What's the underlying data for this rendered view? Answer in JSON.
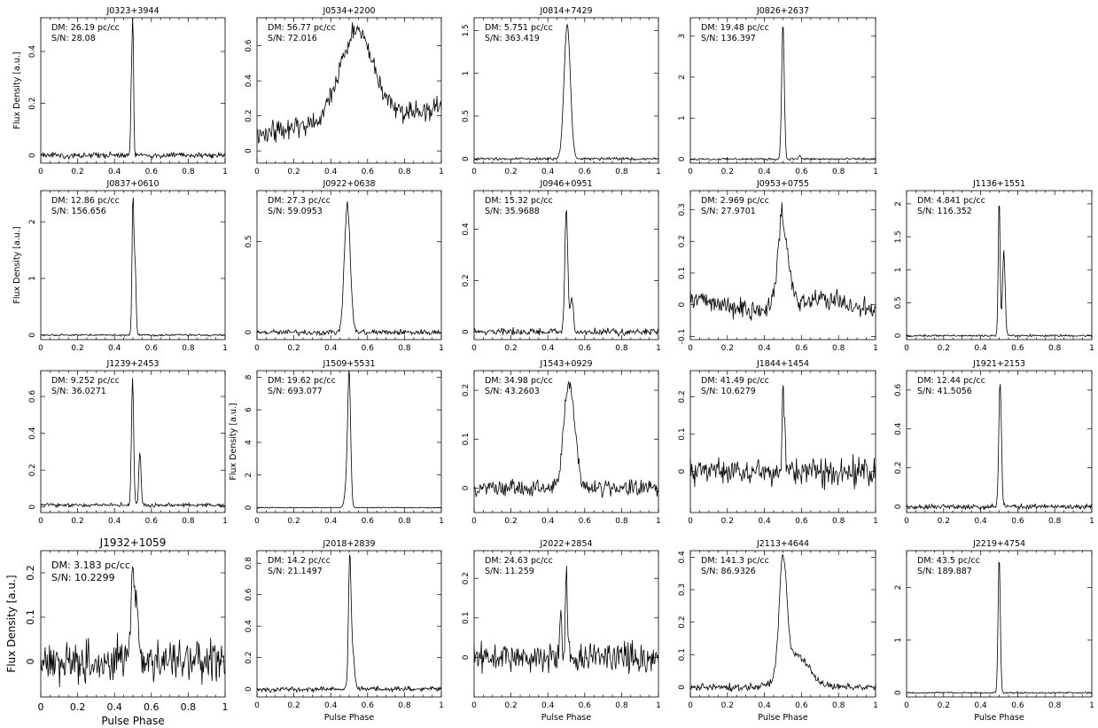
{
  "figure": {
    "xlabel": "Pulse Phase",
    "ylabel": "Flux Density [a.u.]"
  },
  "chart_data": [
    {
      "type": "line",
      "title": "J0323+3944",
      "annotation_dm": "DM: 26.19 pc/cc",
      "annotation_sn": "S/N: 28.08",
      "xlim": [
        0,
        1
      ],
      "ylim": [
        -0.03,
        0.53
      ],
      "yticks": [
        0,
        0.2,
        0.4
      ],
      "ytick_labels": [
        "0",
        "0.2",
        "0.4"
      ],
      "xticks": [
        0,
        0.2,
        0.4,
        0.6,
        0.8,
        1
      ],
      "xtick_labels": [
        "0",
        "0.2",
        "0.4",
        "0.6",
        "0.8",
        "1"
      ],
      "ylabel": "Flux Density [a.u.]",
      "xlabel": "",
      "noise": 0.008,
      "baseline": 0,
      "slope": 0,
      "wave": 0,
      "components": [
        {
          "c": 0.492,
          "w": 0.004,
          "a": 0.27
        },
        {
          "c": 0.5,
          "w": 0.004,
          "a": 0.5
        }
      ],
      "seed": 1
    },
    {
      "type": "line",
      "title": "J0534+2200",
      "annotation_dm": "DM: 56.77 pc/cc",
      "annotation_sn": "S/N: 72.016",
      "xlim": [
        0,
        1
      ],
      "ylim": [
        -0.07,
        0.76
      ],
      "yticks": [
        0,
        0.2,
        0.4,
        0.6
      ],
      "ytick_labels": [
        "0",
        "0.2",
        "0.4",
        "0.6"
      ],
      "xticks": [
        0,
        0.2,
        0.4,
        0.6,
        0.8,
        1
      ],
      "xtick_labels": [
        "0",
        "0.2",
        "0.4",
        "0.6",
        "0.8",
        "1"
      ],
      "ylabel": "",
      "xlabel": "",
      "noise": 0.045,
      "baseline": 0.1,
      "slope": 0.15,
      "wave": 0,
      "components": [
        {
          "c": 0.54,
          "w": 0.09,
          "a": 0.5
        }
      ],
      "seed": 2
    },
    {
      "type": "line",
      "title": "J0814+7429",
      "annotation_dm": "DM: 5.751 pc/cc",
      "annotation_sn": "S/N: 363.419",
      "xlim": [
        0,
        1
      ],
      "ylim": [
        -0.05,
        1.65
      ],
      "yticks": [
        0,
        0.5,
        1,
        1.5
      ],
      "ytick_labels": [
        "0",
        "0.5",
        "1",
        "1.5"
      ],
      "xticks": [
        0,
        0.2,
        0.4,
        0.6,
        0.8,
        1
      ],
      "xtick_labels": [
        "0",
        "0.2",
        "0.4",
        "0.6",
        "0.8",
        "1"
      ],
      "ylabel": "",
      "xlabel": "",
      "noise": 0.012,
      "baseline": 0,
      "slope": 0,
      "wave": 0,
      "components": [
        {
          "c": 0.505,
          "w": 0.017,
          "a": 1.57
        }
      ],
      "seed": 3
    },
    {
      "type": "line",
      "title": "J0826+2637",
      "annotation_dm": "DM: 19.48 pc/cc",
      "annotation_sn": "S/N: 136.397",
      "xlim": [
        0,
        1
      ],
      "ylim": [
        -0.1,
        3.45
      ],
      "yticks": [
        0,
        1,
        2,
        3
      ],
      "ytick_labels": [
        "0",
        "1",
        "2",
        "3"
      ],
      "xticks": [
        0,
        0.2,
        0.4,
        0.6,
        0.8,
        1
      ],
      "xtick_labels": [
        "0",
        "0.2",
        "0.4",
        "0.6",
        "0.8",
        "1"
      ],
      "ylabel": "",
      "xlabel": "",
      "noise": 0.02,
      "baseline": 0,
      "slope": 0,
      "wave": 0,
      "components": [
        {
          "c": 0.5,
          "w": 0.007,
          "a": 3.35
        },
        {
          "c": 0.59,
          "w": 0.005,
          "a": 0.1
        }
      ],
      "seed": 4
    },
    {
      "type": "line",
      "title": "J0837+0610",
      "annotation_dm": "DM: 12.86 pc/cc",
      "annotation_sn": "S/N: 156.656",
      "xlim": [
        0,
        1
      ],
      "ylim": [
        -0.08,
        2.55
      ],
      "yticks": [
        0,
        1,
        2
      ],
      "ytick_labels": [
        "0",
        "1",
        "2"
      ],
      "xticks": [
        0,
        0.2,
        0.4,
        0.6,
        0.8,
        1
      ],
      "xtick_labels": [
        "0",
        "0.2",
        "0.4",
        "0.6",
        "0.8",
        "1"
      ],
      "ylabel": "Flux Density [a.u.]",
      "xlabel": "",
      "noise": 0.012,
      "baseline": 0,
      "slope": 0,
      "wave": 0,
      "components": [
        {
          "c": 0.5,
          "w": 0.005,
          "a": 2.45
        },
        {
          "c": 0.512,
          "w": 0.005,
          "a": 1.2
        }
      ],
      "seed": 5
    },
    {
      "type": "line",
      "title": "J0922+0638",
      "annotation_dm": "DM: 27.3 pc/cc",
      "annotation_sn": "S/N: 59.0953",
      "xlim": [
        0,
        1
      ],
      "ylim": [
        -0.04,
        0.78
      ],
      "yticks": [
        0,
        0.5
      ],
      "ytick_labels": [
        "0",
        "0.5"
      ],
      "xticks": [
        0,
        0.2,
        0.4,
        0.6,
        0.8,
        1
      ],
      "xtick_labels": [
        "0",
        "0.2",
        "0.4",
        "0.6",
        "0.8",
        "1"
      ],
      "ylabel": "",
      "xlabel": "",
      "noise": 0.012,
      "baseline": 0,
      "slope": 0,
      "wave": 0,
      "components": [
        {
          "c": 0.49,
          "w": 0.016,
          "a": 0.7
        }
      ],
      "seed": 6
    },
    {
      "type": "line",
      "title": "J0946+0951",
      "annotation_dm": "DM: 15.32 pc/cc",
      "annotation_sn": "S/N: 35.9688",
      "xlim": [
        0,
        1
      ],
      "ylim": [
        -0.03,
        0.55
      ],
      "yticks": [
        0,
        0.2,
        0.4
      ],
      "ytick_labels": [
        "0",
        "0.2",
        "0.4"
      ],
      "xticks": [
        0,
        0.2,
        0.4,
        0.6,
        0.8,
        1
      ],
      "xtick_labels": [
        "0",
        "0.2",
        "0.4",
        "0.6",
        "0.8",
        "1"
      ],
      "ylabel": "",
      "xlabel": "",
      "noise": 0.01,
      "baseline": 0,
      "slope": 0,
      "wave": 0,
      "components": [
        {
          "c": 0.5,
          "w": 0.008,
          "a": 0.48
        },
        {
          "c": 0.53,
          "w": 0.008,
          "a": 0.14
        }
      ],
      "seed": 7
    },
    {
      "type": "line",
      "title": "J0953+0755",
      "annotation_dm": "DM: 2.969 pc/cc",
      "annotation_sn": "S/N: 27.9701",
      "xlim": [
        0,
        1
      ],
      "ylim": [
        -0.11,
        0.36
      ],
      "yticks": [
        -0.1,
        0,
        0.1,
        0.2,
        0.3
      ],
      "ytick_labels": [
        "-0.1",
        "0",
        "0.1",
        "0.2",
        "0.3"
      ],
      "xticks": [
        0,
        0.2,
        0.4,
        0.6,
        0.8,
        1
      ],
      "xtick_labels": [
        "0",
        "0.2",
        "0.4",
        "0.6",
        "0.8",
        "1"
      ],
      "ylabel": "",
      "xlabel": "",
      "noise": 0.025,
      "baseline": 0,
      "slope": 0,
      "wave": 0.015,
      "components": [
        {
          "c": 0.5,
          "w": 0.03,
          "a": 0.24
        },
        {
          "c": 0.49,
          "w": 0.007,
          "a": 0.08
        }
      ],
      "seed": 8
    },
    {
      "type": "line",
      "title": "J1136+1551",
      "annotation_dm": "DM: 4.841 pc/cc",
      "annotation_sn": "S/N: 116.352",
      "xlim": [
        0,
        1
      ],
      "ylim": [
        -0.06,
        2.2
      ],
      "yticks": [
        0,
        0.5,
        1,
        1.5,
        2
      ],
      "ytick_labels": [
        "0",
        "0.5",
        "1",
        "1.5",
        "2"
      ],
      "xticks": [
        0,
        0.2,
        0.4,
        0.6,
        0.8,
        1
      ],
      "xtick_labels": [
        "0",
        "0.2",
        "0.4",
        "0.6",
        "0.8",
        "1"
      ],
      "ylabel": "",
      "xlabel": "",
      "noise": 0.012,
      "baseline": 0,
      "slope": 0,
      "wave": 0,
      "components": [
        {
          "c": 0.5,
          "w": 0.005,
          "a": 2.12
        },
        {
          "c": 0.525,
          "w": 0.007,
          "a": 1.28
        }
      ],
      "seed": 9
    },
    {
      "type": "line",
      "title": "J1239+2453",
      "annotation_dm": "DM: 9.252 pc/cc",
      "annotation_sn": "S/N: 36.0271",
      "xlim": [
        0,
        1
      ],
      "ylim": [
        -0.03,
        0.74
      ],
      "yticks": [
        0,
        0.2,
        0.4,
        0.6
      ],
      "ytick_labels": [
        "0",
        "0.2",
        "0.4",
        "0.6"
      ],
      "xticks": [
        0,
        0.2,
        0.4,
        0.6,
        0.8,
        1
      ],
      "xtick_labels": [
        "0",
        "0.2",
        "0.4",
        "0.6",
        "0.8",
        "1"
      ],
      "ylabel": "",
      "xlabel": "",
      "noise": 0.008,
      "baseline": 0.01,
      "slope": 0,
      "wave": 0,
      "components": [
        {
          "c": 0.498,
          "w": 0.006,
          "a": 0.7
        },
        {
          "c": 0.538,
          "w": 0.006,
          "a": 0.29
        }
      ],
      "seed": 10
    },
    {
      "type": "line",
      "title": "J1509+5531",
      "annotation_dm": "DM: 19.62 pc/cc",
      "annotation_sn": "S/N: 693.077",
      "xlim": [
        0,
        1
      ],
      "ylim": [
        -0.3,
        8.4
      ],
      "yticks": [
        0,
        2,
        4,
        6,
        8
      ],
      "ytick_labels": [
        "0",
        "2",
        "4",
        "6",
        "8"
      ],
      "xticks": [
        0,
        0.2,
        0.4,
        0.6,
        0.8,
        1
      ],
      "xtick_labels": [
        "0",
        "0.2",
        "0.4",
        "0.6",
        "0.8",
        "1"
      ],
      "ylabel": "Flux Density [a.u.]",
      "xlabel": "",
      "noise": 0.02,
      "baseline": 0,
      "slope": 0,
      "wave": 0,
      "components": [
        {
          "c": 0.5,
          "w": 0.008,
          "a": 8.1
        },
        {
          "c": 0.485,
          "w": 0.01,
          "a": 1.2
        }
      ],
      "seed": 11
    },
    {
      "type": "line",
      "title": "J1543+0929",
      "annotation_dm": "DM: 34.98 pc/cc",
      "annotation_sn": "S/N: 43.2603",
      "xlim": [
        0,
        1
      ],
      "ylim": [
        -0.05,
        0.24
      ],
      "yticks": [
        0,
        0.1,
        0.2
      ],
      "ytick_labels": [
        "0",
        "0.1",
        "0.2"
      ],
      "xticks": [
        0,
        0.2,
        0.4,
        0.6,
        0.8,
        1
      ],
      "xtick_labels": [
        "0",
        "0.2",
        "0.4",
        "0.6",
        "0.8",
        "1"
      ],
      "ylabel": "",
      "xlabel": "",
      "noise": 0.012,
      "baseline": 0,
      "slope": 0,
      "wave": 0,
      "components": [
        {
          "c": 0.51,
          "w": 0.025,
          "a": 0.2
        },
        {
          "c": 0.55,
          "w": 0.02,
          "a": 0.06
        }
      ],
      "seed": 12
    },
    {
      "type": "line",
      "title": "J1844+1454",
      "annotation_dm": "DM: 41.49 pc/cc",
      "annotation_sn": "S/N: 10.6279",
      "xlim": [
        0,
        1
      ],
      "ylim": [
        -0.11,
        0.27
      ],
      "yticks": [
        0,
        0.1,
        0.2
      ],
      "ytick_labels": [
        "0",
        "0.1",
        "0.2"
      ],
      "xticks": [
        0,
        0.2,
        0.4,
        0.6,
        0.8,
        1
      ],
      "xtick_labels": [
        "0",
        "0.2",
        "0.4",
        "0.6",
        "0.8",
        "1"
      ],
      "ylabel": "",
      "xlabel": "",
      "noise": 0.028,
      "baseline": 0,
      "slope": 0,
      "wave": 0,
      "components": [
        {
          "c": 0.5,
          "w": 0.005,
          "a": 0.24
        },
        {
          "c": 0.51,
          "w": 0.004,
          "a": 0.1
        }
      ],
      "seed": 13
    },
    {
      "type": "line",
      "title": "J1921+2153",
      "annotation_dm": "DM: 12.44 pc/cc",
      "annotation_sn": "S/N: 41.5056",
      "xlim": [
        0,
        1
      ],
      "ylim": [
        -0.03,
        0.7
      ],
      "yticks": [
        0,
        0.2,
        0.4,
        0.6
      ],
      "ytick_labels": [
        "0",
        "0.2",
        "0.4",
        "0.6"
      ],
      "xticks": [
        0,
        0.2,
        0.4,
        0.6,
        0.8,
        1
      ],
      "xtick_labels": [
        "0",
        "0.2",
        "0.4",
        "0.6",
        "0.8",
        "1"
      ],
      "ylabel": "",
      "xlabel": "",
      "noise": 0.01,
      "baseline": 0,
      "slope": 0,
      "wave": 0,
      "components": [
        {
          "c": 0.505,
          "w": 0.007,
          "a": 0.65
        }
      ],
      "seed": 14
    },
    {
      "type": "line",
      "title": "J1932+1059",
      "annotation_dm": "DM: 3.183 pc/cc",
      "annotation_sn": "S/N: 10.2299",
      "xlim": [
        0,
        1
      ],
      "ylim": [
        -0.08,
        0.25
      ],
      "yticks": [
        0,
        0.1,
        0.2
      ],
      "ytick_labels": [
        "0",
        "0.1",
        "0.2"
      ],
      "xticks": [
        0,
        0.2,
        0.4,
        0.6,
        0.8,
        1
      ],
      "xtick_labels": [
        "0",
        "0.2",
        "0.4",
        "0.6",
        "0.8",
        "1"
      ],
      "ylabel": "Flux Density [a.u.]",
      "xlabel": "Pulse Phase",
      "noise": 0.035,
      "baseline": 0,
      "slope": 0,
      "wave": 0,
      "components": [
        {
          "c": 0.505,
          "w": 0.02,
          "a": 0.14
        },
        {
          "c": 0.5,
          "w": 0.006,
          "a": 0.08
        }
      ],
      "seed": 15
    },
    {
      "type": "line",
      "title": "J2018+2839",
      "annotation_dm": "DM: 14.2 pc/cc",
      "annotation_sn": "S/N: 21.1497",
      "xlim": [
        0,
        1
      ],
      "ylim": [
        -0.05,
        0.88
      ],
      "yticks": [
        0,
        0.2,
        0.4,
        0.6,
        0.8
      ],
      "ytick_labels": [
        "0",
        "0.2",
        "0.4",
        "0.6",
        "0.8"
      ],
      "xticks": [
        0,
        0.2,
        0.4,
        0.6,
        0.8,
        1
      ],
      "xtick_labels": [
        "0",
        "0.2",
        "0.4",
        "0.6",
        "0.8",
        "1"
      ],
      "ylabel": "",
      "xlabel": "Pulse Phase",
      "noise": 0.012,
      "baseline": 0,
      "slope": 0,
      "wave": 0,
      "components": [
        {
          "c": 0.503,
          "w": 0.007,
          "a": 0.82
        },
        {
          "c": 0.52,
          "w": 0.01,
          "a": 0.22
        }
      ],
      "seed": 16
    },
    {
      "type": "line",
      "title": "J2022+2854",
      "annotation_dm": "DM: 24.63 pc/cc",
      "annotation_sn": "S/N: 11.259",
      "xlim": [
        0,
        1
      ],
      "ylim": [
        -0.1,
        0.27
      ],
      "yticks": [
        0,
        0.1,
        0.2
      ],
      "ytick_labels": [
        "0",
        "0.1",
        "0.2"
      ],
      "xticks": [
        0,
        0.2,
        0.4,
        0.6,
        0.8,
        1
      ],
      "xtick_labels": [
        "0",
        "0.2",
        "0.4",
        "0.6",
        "0.8",
        "1"
      ],
      "ylabel": "",
      "xlabel": "Pulse Phase",
      "noise": 0.028,
      "baseline": 0,
      "slope": 0,
      "wave": 0,
      "components": [
        {
          "c": 0.47,
          "w": 0.005,
          "a": 0.13
        },
        {
          "c": 0.5,
          "w": 0.005,
          "a": 0.25
        }
      ],
      "seed": 17
    },
    {
      "type": "line",
      "title": "J2113+4644",
      "annotation_dm": "DM: 141.3 pc/cc",
      "annotation_sn": "S/N: 86.9326",
      "xlim": [
        0,
        1
      ],
      "ylim": [
        -0.03,
        0.42
      ],
      "yticks": [
        0,
        0.1,
        0.2,
        0.3,
        0.4
      ],
      "ytick_labels": [
        "0",
        "0.1",
        "0.2",
        "0.3",
        "0.4"
      ],
      "xticks": [
        0,
        0.2,
        0.4,
        0.6,
        0.8,
        1
      ],
      "xtick_labels": [
        "0",
        "0.2",
        "0.4",
        "0.6",
        "0.8",
        "1"
      ],
      "ylabel": "",
      "xlabel": "Pulse Phase",
      "noise": 0.008,
      "baseline": 0,
      "slope": 0,
      "wave": 0,
      "components": [
        {
          "c": 0.5,
          "w": 0.02,
          "a": 0.35
        },
        {
          "c": 0.57,
          "w": 0.07,
          "a": 0.1
        }
      ],
      "seed": 18
    },
    {
      "type": "line",
      "title": "J2219+4754",
      "annotation_dm": "DM: 43.5 pc/cc",
      "annotation_sn": "S/N: 189.887",
      "xlim": [
        0,
        1
      ],
      "ylim": [
        -0.08,
        2.7
      ],
      "yticks": [
        0,
        1,
        2
      ],
      "ytick_labels": [
        "0",
        "1",
        "2"
      ],
      "xticks": [
        0,
        0.2,
        0.4,
        0.6,
        0.8,
        1
      ],
      "xtick_labels": [
        "0",
        "0.2",
        "0.4",
        "0.6",
        "0.8",
        "1"
      ],
      "ylabel": "",
      "xlabel": "Pulse Phase",
      "noise": 0.012,
      "baseline": 0,
      "slope": 0,
      "wave": 0,
      "components": [
        {
          "c": 0.5,
          "w": 0.006,
          "a": 2.6
        }
      ],
      "seed": 19
    }
  ]
}
